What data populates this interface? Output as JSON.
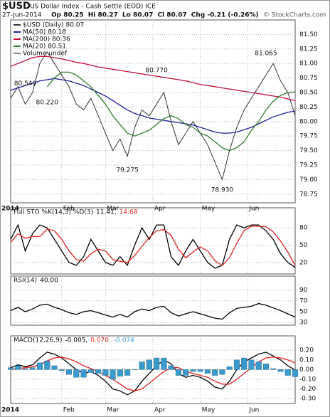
{
  "header": {
    "symbol": "$USD",
    "name": "US Dollar Index - Cash Settle (EOD) ICE",
    "date": "27-Jun-2014",
    "quote": [
      "Op 80.25",
      "Hi 80.27",
      "Lo 80.07",
      "Cl 80.07",
      "Chg -0.21 (-0.26%)"
    ],
    "source": "© StockCharts.com"
  },
  "chart_data": [
    {
      "type": "line",
      "ylim": [
        78.6,
        81.75
      ],
      "yticks": [
        {
          "value": 81.5,
          "label": "81.50"
        },
        {
          "value": 81.25,
          "label": "81.25"
        },
        {
          "value": 81,
          "label": "81.00"
        },
        {
          "value": 80.75,
          "label": "80.75"
        },
        {
          "value": 80.5,
          "label": "80.50"
        },
        {
          "value": 80.25,
          "label": "80.25"
        },
        {
          "value": 80,
          "label": "80.00"
        },
        {
          "value": 79.75,
          "label": "79.75"
        },
        {
          "value": 79.5,
          "label": "79.50"
        },
        {
          "value": 79.25,
          "label": "79.25"
        },
        {
          "value": 79,
          "label": "79.00"
        },
        {
          "value": 78.75,
          "label": "78.75"
        }
      ],
      "xlim": [
        0,
        39
      ],
      "xticks": [
        {
          "value": 0,
          "label": "2014"
        },
        {
          "value": 7,
          "label": "Feb"
        },
        {
          "value": 13,
          "label": "Mar"
        },
        {
          "value": 19.5,
          "label": "Apr"
        },
        {
          "value": 26,
          "label": "May"
        },
        {
          "value": 32.5,
          "label": "Jun"
        }
      ],
      "grid": true,
      "series": [
        {
          "name": "$USD (Daily) 80.07",
          "color": "#333333",
          "values": [
            80.4,
            80.6,
            80.3,
            80.5,
            81.0,
            81.2,
            81.0,
            80.8,
            80.6,
            80.3,
            80.2,
            80.4,
            80.1,
            79.8,
            79.5,
            79.7,
            79.4,
            79.9,
            80.2,
            80.1,
            80.3,
            80.5,
            80.0,
            79.6,
            79.8,
            80.0,
            79.8,
            79.6,
            79.3,
            79.0,
            79.5,
            79.9,
            80.2,
            80.4,
            80.6,
            80.8,
            81.0,
            80.7,
            80.5,
            80.1
          ]
        },
        {
          "name": "MA(50) 80.18",
          "color": "#1f1f9a",
          "values": [
            80.54,
            80.58,
            80.62,
            80.66,
            80.7,
            80.72,
            80.74,
            80.72,
            80.7,
            80.66,
            80.62,
            80.56,
            80.5,
            80.44,
            80.36,
            80.28,
            80.2,
            80.14,
            80.1,
            80.06,
            80.04,
            80.02,
            80.0,
            79.98,
            79.96,
            79.94,
            79.9,
            79.86,
            79.82,
            79.8,
            79.8,
            79.82,
            79.86,
            79.9,
            79.96,
            80.02,
            80.08,
            80.12,
            80.16,
            80.18
          ]
        },
        {
          "name": "MA(200) 80.36",
          "color": "#c0103a",
          "values": [
            80.95,
            81.0,
            81.05,
            81.1,
            81.12,
            81.12,
            81.1,
            81.08,
            81.05,
            81.02,
            81.0,
            80.97,
            80.94,
            80.92,
            80.9,
            80.88,
            80.86,
            80.84,
            80.82,
            80.8,
            80.78,
            80.76,
            80.74,
            80.72,
            80.7,
            80.67,
            80.64,
            80.62,
            80.6,
            80.58,
            80.56,
            80.54,
            80.52,
            80.5,
            80.48,
            80.46,
            80.44,
            80.42,
            80.39,
            80.36
          ]
        },
        {
          "name": "MA(20) 80.51",
          "color": "#2e7d2e",
          "values": [
            null,
            null,
            null,
            null,
            null,
            80.6,
            80.75,
            80.85,
            80.85,
            80.8,
            80.7,
            80.6,
            80.45,
            80.3,
            80.1,
            79.95,
            79.8,
            79.75,
            79.8,
            79.85,
            79.95,
            80.05,
            80.1,
            80.05,
            79.95,
            79.9,
            79.8,
            79.75,
            79.65,
            79.55,
            79.5,
            79.55,
            79.65,
            79.85,
            80.0,
            80.2,
            80.35,
            80.45,
            80.5,
            80.51
          ]
        },
        {
          "name": "Volume undef",
          "color": "#888888",
          "values": []
        }
      ],
      "annotations": [
        {
          "label": "80.540",
          "x": 2,
          "y": 80.54
        },
        {
          "label": "80.220",
          "x": 5,
          "y": 80.22
        },
        {
          "label": "79.275",
          "x": 16,
          "y": 79.275
        },
        {
          "label": "80.770",
          "x": 20,
          "y": 80.77
        },
        {
          "label": "78.930",
          "x": 29,
          "y": 78.93
        },
        {
          "label": "81.065",
          "x": 35,
          "y": 81.065
        }
      ]
    },
    {
      "type": "line",
      "label": "Full STO %K(14,3) %D(3)",
      "ylim": [
        0,
        100
      ],
      "yticks": [
        80,
        50,
        20
      ],
      "grid": true,
      "series": [
        {
          "name": "11.41,",
          "color": "#000000",
          "values": [
            60,
            85,
            40,
            70,
            85,
            80,
            60,
            40,
            20,
            15,
            30,
            60,
            40,
            20,
            15,
            30,
            15,
            50,
            80,
            60,
            85,
            85,
            30,
            15,
            40,
            60,
            40,
            20,
            10,
            15,
            60,
            85,
            80,
            85,
            85,
            75,
            60,
            35,
            20,
            11.41
          ]
        },
        {
          "name": "14.68",
          "color": "#e02020",
          "values": [
            55,
            70,
            62,
            65,
            65,
            78,
            75,
            60,
            40,
            25,
            22,
            35,
            43,
            40,
            25,
            22,
            20,
            32,
            48,
            63,
            75,
            77,
            67,
            43,
            28,
            38,
            47,
            40,
            23,
            15,
            28,
            53,
            75,
            83,
            83,
            82,
            73,
            57,
            38,
            14.68
          ]
        }
      ]
    },
    {
      "type": "line",
      "label": "RSI(14)",
      "ylim": [
        25,
        100
      ],
      "yticks": [
        90,
        70,
        50,
        30
      ],
      "grid": true,
      "series": [
        {
          "name": "40.00",
          "color": "#000000",
          "values": [
            52,
            58,
            50,
            55,
            62,
            64,
            58,
            54,
            48,
            45,
            50,
            52,
            48,
            44,
            40,
            45,
            40,
            50,
            55,
            52,
            58,
            60,
            48,
            42,
            46,
            50,
            46,
            42,
            38,
            36,
            48,
            56,
            58,
            60,
            65,
            62,
            57,
            52,
            46,
            40
          ]
        }
      ]
    },
    {
      "type": "line",
      "label": "MACD(12,26,9)",
      "ylim": [
        -0.35,
        0.26
      ],
      "yticks": [
        {
          "value": 0.2,
          "label": "0.20"
        },
        {
          "value": 0.1,
          "label": "0.10"
        },
        {
          "value": 0,
          "label": "0.00"
        },
        {
          "value": -0.1,
          "label": "-0.10"
        },
        {
          "value": -0.2,
          "label": "-0.20"
        },
        {
          "value": -0.3,
          "label": "-0.30"
        }
      ],
      "grid": true,
      "series": [
        {
          "name": "-0.005,",
          "color": "#000000",
          "values": [
            0.02,
            0.05,
            0.03,
            0.05,
            0.12,
            0.18,
            0.16,
            0.12,
            0.06,
            0.0,
            -0.04,
            -0.02,
            -0.06,
            -0.12,
            -0.2,
            -0.22,
            -0.26,
            -0.22,
            -0.12,
            -0.04,
            0.04,
            0.1,
            0.06,
            -0.04,
            -0.08,
            -0.06,
            -0.08,
            -0.12,
            -0.18,
            -0.2,
            -0.12,
            0.0,
            0.08,
            0.12,
            0.16,
            0.18,
            0.14,
            0.1,
            0.04,
            -0.005
          ]
        },
        {
          "name": "0.070,",
          "color": "#e02020",
          "values": [
            0.0,
            0.01,
            0.02,
            0.03,
            0.05,
            0.09,
            0.12,
            0.13,
            0.11,
            0.08,
            0.04,
            0.01,
            -0.02,
            -0.06,
            -0.1,
            -0.15,
            -0.2,
            -0.22,
            -0.2,
            -0.14,
            -0.08,
            -0.02,
            0.02,
            0.02,
            -0.02,
            -0.04,
            -0.06,
            -0.08,
            -0.12,
            -0.15,
            -0.15,
            -0.1,
            -0.04,
            0.02,
            0.08,
            0.12,
            0.13,
            0.12,
            0.1,
            0.07
          ]
        },
        {
          "name": "-0.074",
          "color": "#3a9acb",
          "style": "bar",
          "values": [
            0.02,
            0.04,
            0.01,
            0.02,
            0.07,
            0.09,
            0.04,
            -0.01,
            -0.05,
            -0.08,
            -0.08,
            -0.03,
            -0.04,
            -0.06,
            -0.1,
            -0.07,
            -0.06,
            0.0,
            0.08,
            0.1,
            0.12,
            0.12,
            0.04,
            -0.06,
            -0.06,
            -0.02,
            -0.02,
            -0.04,
            -0.06,
            -0.05,
            0.03,
            0.1,
            0.12,
            0.1,
            0.08,
            0.06,
            0.01,
            -0.02,
            -0.06,
            -0.074
          ]
        }
      ]
    }
  ]
}
